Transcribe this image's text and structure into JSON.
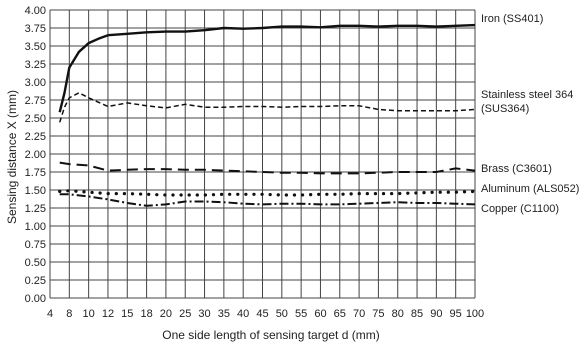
{
  "chart_data": {
    "type": "line",
    "xlabel": "One side length of sensing target d (mm)",
    "ylabel": "Sensing distance X (mm)",
    "x_ticks": [
      "4",
      "8",
      "10",
      "12",
      "15",
      "18",
      "20",
      "25",
      "30",
      "35",
      "40",
      "45",
      "50",
      "55",
      "60",
      "65",
      "70",
      "75",
      "80",
      "85",
      "90",
      "95",
      "100"
    ],
    "y_ticks": [
      "0.00",
      "0.25",
      "0.50",
      "0.75",
      "1.00",
      "1.25",
      "1.50",
      "1.75",
      "2.00",
      "2.25",
      "2.50",
      "2.75",
      "3.00",
      "3.25",
      "3.50",
      "3.75",
      "4.00"
    ],
    "ylim": [
      0,
      4
    ],
    "grid": true,
    "series": [
      {
        "name_lines": [
          "Iron (SS401)"
        ],
        "style": "solid",
        "x": [
          "6",
          "7",
          "8",
          "9",
          "10",
          "11",
          "12",
          "15",
          "18",
          "20",
          "25",
          "30",
          "35",
          "40",
          "45",
          "50",
          "55",
          "60",
          "65",
          "70",
          "75",
          "80",
          "85",
          "90",
          "95",
          "100"
        ],
        "values": [
          2.58,
          2.85,
          3.2,
          3.42,
          3.54,
          3.6,
          3.65,
          3.67,
          3.69,
          3.7,
          3.7,
          3.72,
          3.75,
          3.74,
          3.75,
          3.77,
          3.77,
          3.76,
          3.78,
          3.78,
          3.77,
          3.78,
          3.78,
          3.77,
          3.78,
          3.79
        ]
      },
      {
        "name_lines": [
          "Stainless steel 364",
          "(SUS364)"
        ],
        "style": "short-dash",
        "x": [
          "6",
          "7",
          "8",
          "9",
          "10",
          "11",
          "12",
          "15",
          "18",
          "20",
          "25",
          "30",
          "35",
          "40",
          "45",
          "50",
          "55",
          "60",
          "65",
          "70",
          "75",
          "80",
          "85",
          "90",
          "95",
          "100"
        ],
        "values": [
          2.44,
          2.65,
          2.78,
          2.85,
          2.78,
          2.72,
          2.66,
          2.71,
          2.67,
          2.64,
          2.69,
          2.65,
          2.65,
          2.66,
          2.66,
          2.65,
          2.66,
          2.66,
          2.67,
          2.67,
          2.62,
          2.6,
          2.6,
          2.6,
          2.6,
          2.62
        ]
      },
      {
        "name_lines": [
          "Brass (C3601)"
        ],
        "style": "long-dash",
        "x": [
          "6",
          "8",
          "10",
          "12",
          "15",
          "18",
          "20",
          "25",
          "30",
          "35",
          "40",
          "45",
          "50",
          "55",
          "60",
          "65",
          "70",
          "75",
          "80",
          "85",
          "90",
          "95",
          "100"
        ],
        "values": [
          1.88,
          1.86,
          1.84,
          1.77,
          1.78,
          1.79,
          1.79,
          1.78,
          1.78,
          1.77,
          1.76,
          1.75,
          1.74,
          1.74,
          1.73,
          1.73,
          1.73,
          1.74,
          1.75,
          1.75,
          1.75,
          1.8,
          1.77
        ]
      },
      {
        "name_lines": [
          "Aluminum (ALS052)"
        ],
        "style": "dotted",
        "x": [
          "6",
          "8",
          "10",
          "12",
          "15",
          "18",
          "20",
          "25",
          "30",
          "35",
          "40",
          "45",
          "50",
          "55",
          "60",
          "65",
          "70",
          "75",
          "80",
          "85",
          "90",
          "95",
          "100"
        ],
        "values": [
          1.48,
          1.49,
          1.47,
          1.45,
          1.45,
          1.44,
          1.43,
          1.43,
          1.43,
          1.44,
          1.44,
          1.44,
          1.43,
          1.43,
          1.44,
          1.44,
          1.45,
          1.45,
          1.45,
          1.46,
          1.47,
          1.47,
          1.48
        ]
      },
      {
        "name_lines": [
          "Copper (C1100)"
        ],
        "style": "dash-dot",
        "x": [
          "6",
          "8",
          "10",
          "12",
          "15",
          "18",
          "20",
          "25",
          "30",
          "35",
          "40",
          "45",
          "50",
          "55",
          "60",
          "65",
          "70",
          "75",
          "80",
          "85",
          "90",
          "95",
          "100"
        ],
        "values": [
          1.44,
          1.44,
          1.41,
          1.37,
          1.32,
          1.28,
          1.3,
          1.34,
          1.34,
          1.33,
          1.31,
          1.3,
          1.31,
          1.31,
          1.3,
          1.3,
          1.31,
          1.32,
          1.33,
          1.32,
          1.32,
          1.31,
          1.3
        ]
      }
    ]
  }
}
